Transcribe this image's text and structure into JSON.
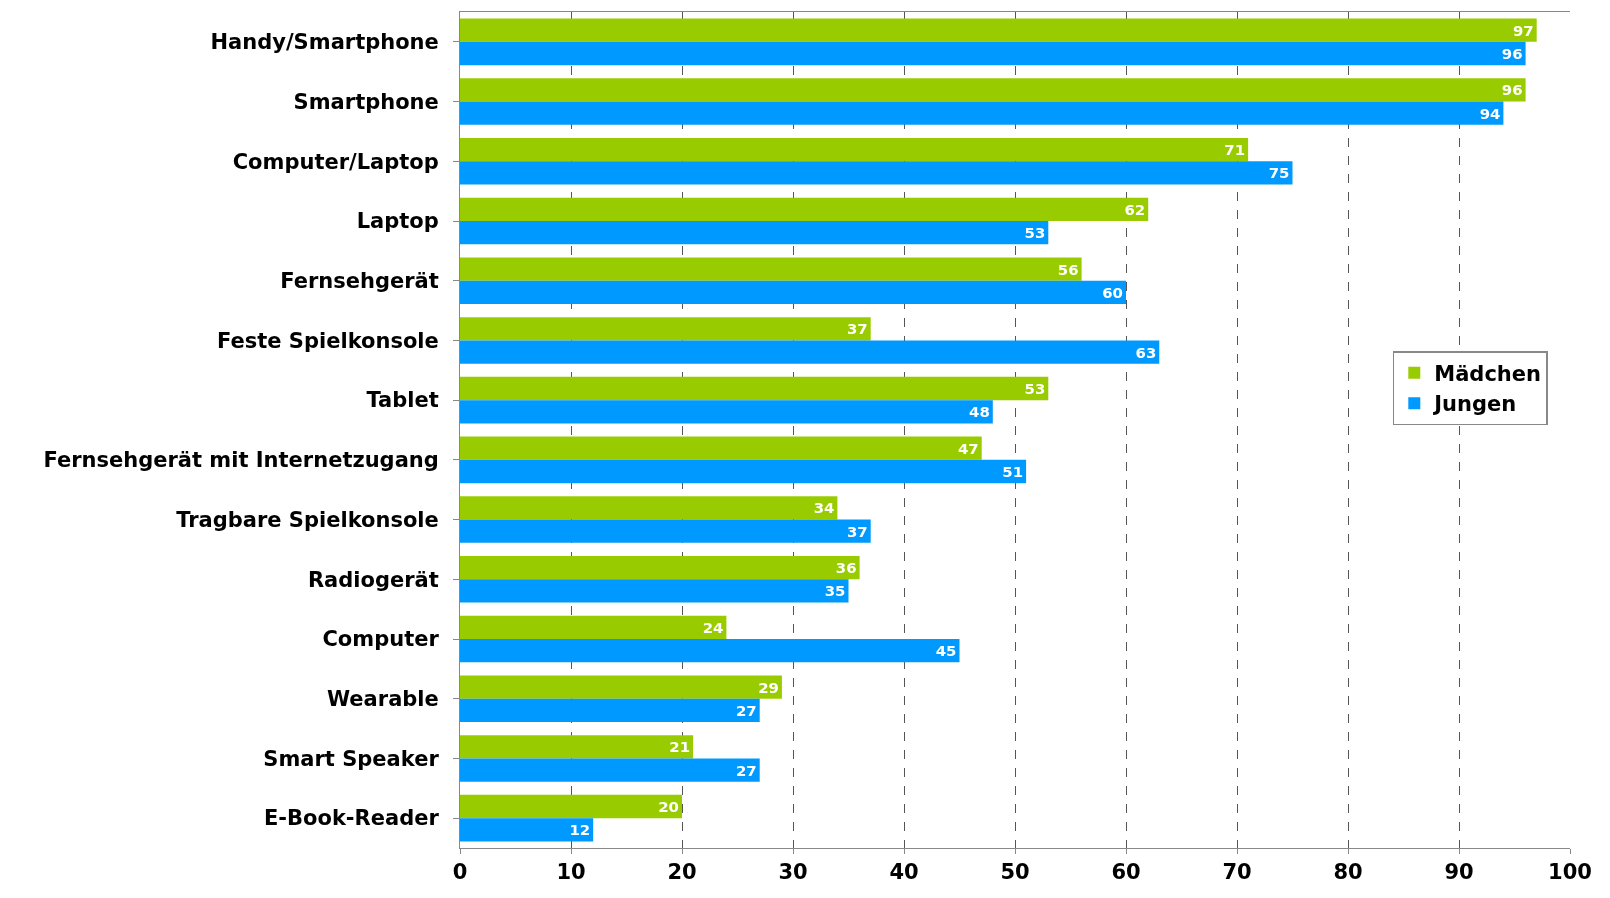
{
  "chart_data": {
    "type": "bar",
    "orientation": "horizontal",
    "categories": [
      "Handy/Smartphone",
      "Smartphone",
      "Computer/Laptop",
      "Laptop",
      "Fernsehgerät",
      "Feste Spielkonsole",
      "Tablet",
      "Fernsehgerät mit Internetzugang",
      "Tragbare Spielkonsole",
      "Radiogerät",
      "Computer",
      "Wearable",
      "Smart Speaker",
      "E-Book-Reader"
    ],
    "series": [
      {
        "name": "Mädchen",
        "color": "#99cc00",
        "values": [
          97,
          96,
          71,
          62,
          56,
          37,
          53,
          47,
          34,
          36,
          24,
          29,
          21,
          20
        ]
      },
      {
        "name": "Jungen",
        "color": "#0099ff",
        "values": [
          96,
          94,
          75,
          53,
          60,
          63,
          48,
          51,
          37,
          35,
          45,
          27,
          27,
          12
        ]
      }
    ],
    "xlim": [
      0,
      100
    ],
    "xticks": [
      0,
      10,
      20,
      30,
      40,
      50,
      60,
      70,
      80,
      90,
      100
    ],
    "grid": "x",
    "legend": "right",
    "data_labels": true
  }
}
